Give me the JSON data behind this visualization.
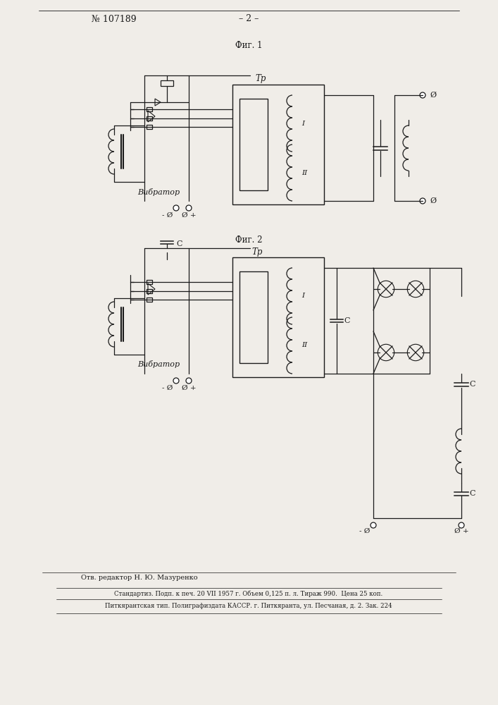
{
  "page_width": 7.07,
  "page_height": 10.0,
  "bg_color": "#f0ede8",
  "line_color": "#1a1a1a",
  "header_patent": "№ 107189",
  "header_page": "– 2 –",
  "fig1_label": "Фиг. 1",
  "fig2_label": "Фиг. 2",
  "vibrator_label": "Вибратор",
  "Tp_label": "Тр",
  "I_label": "I",
  "II_label": "II",
  "C_label": "C",
  "footer_editor": "Отв. редактор Н. Ю. Мазуренко",
  "footer_line1": "Стандартиз. Подп. к печ. 20 VII 1957 г. Объем 0,125 п. л. Тираж 990.  Цена 25 коп.",
  "footer_line2": "Питкярантская тип. Полиграфиздата КАССР. г. Питкяранта, ул. Песчаная, д. 2. Зак. 224"
}
